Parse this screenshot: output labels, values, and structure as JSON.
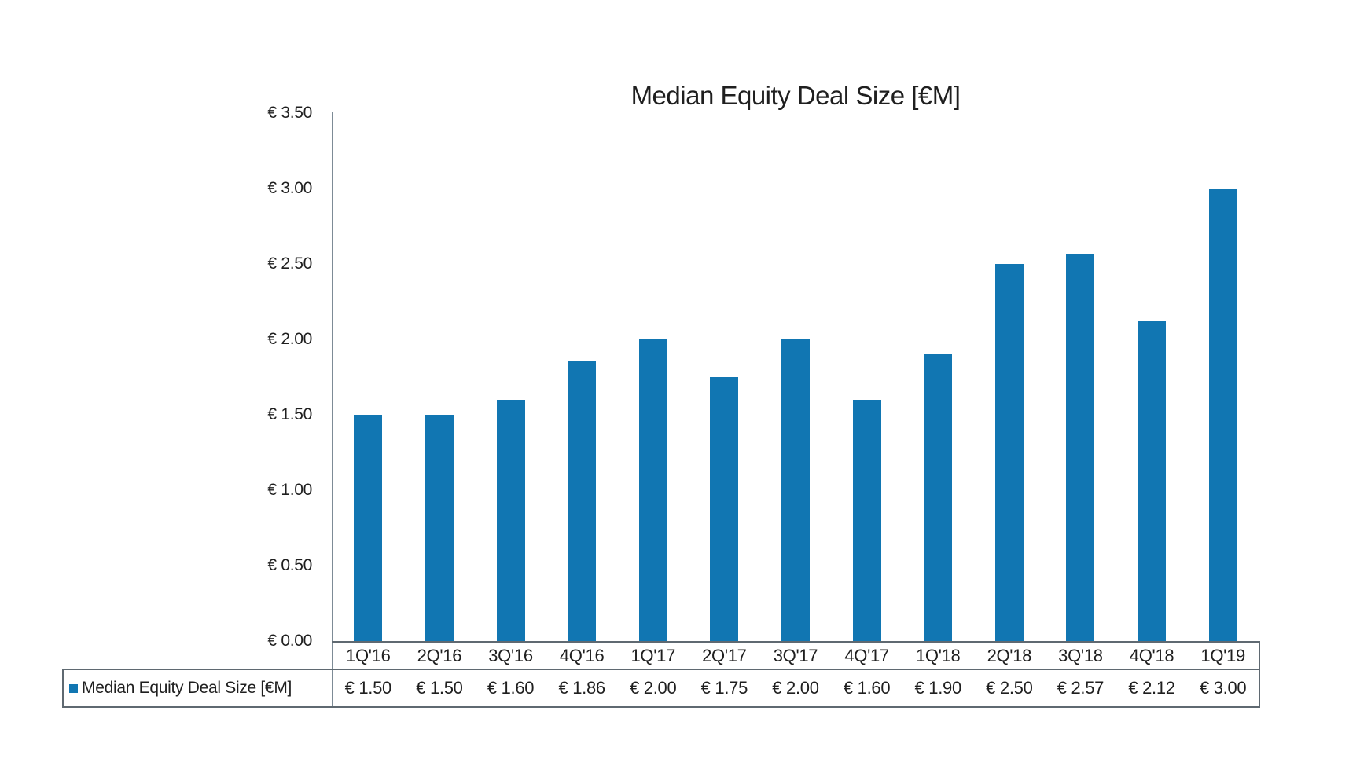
{
  "chart_data": {
    "type": "bar",
    "title": "Median Equity Deal Size [€M]",
    "categories": [
      "1Q'16",
      "2Q'16",
      "3Q'16",
      "4Q'16",
      "1Q'17",
      "2Q'17",
      "3Q'17",
      "4Q'17",
      "1Q'18",
      "2Q'18",
      "3Q'18",
      "4Q'18",
      "1Q'19"
    ],
    "series": [
      {
        "name": "Median Equity Deal Size [€M]",
        "values": [
          1.5,
          1.5,
          1.6,
          1.86,
          2.0,
          1.75,
          2.0,
          1.6,
          1.9,
          2.5,
          2.57,
          2.12,
          3.0
        ],
        "formatted_values": [
          "€ 1.50",
          "€ 1.50",
          "€ 1.60",
          "€ 1.86",
          "€ 2.00",
          "€ 1.75",
          "€ 2.00",
          "€ 1.60",
          "€ 1.90",
          "€ 2.50",
          "€ 2.57",
          "€ 2.12",
          "€ 3.00"
        ]
      }
    ],
    "y_axis": {
      "min": 0,
      "max": 3.5,
      "step": 0.5,
      "tick_labels": [
        "€ 0.00",
        "€ 0.50",
        "€ 1.00",
        "€ 1.50",
        "€ 2.00",
        "€ 2.50",
        "€ 3.00",
        "€ 3.50"
      ]
    },
    "xlabel": "",
    "ylabel": "",
    "grid": false,
    "legend": {
      "label": "Median Equity Deal Size [€M]",
      "position": "bottom-table-left"
    },
    "colors": {
      "bar": "#1176b2",
      "axis_line": "#7d8b96",
      "table_border": "#5f6971",
      "text": "#1f1f1f"
    }
  }
}
